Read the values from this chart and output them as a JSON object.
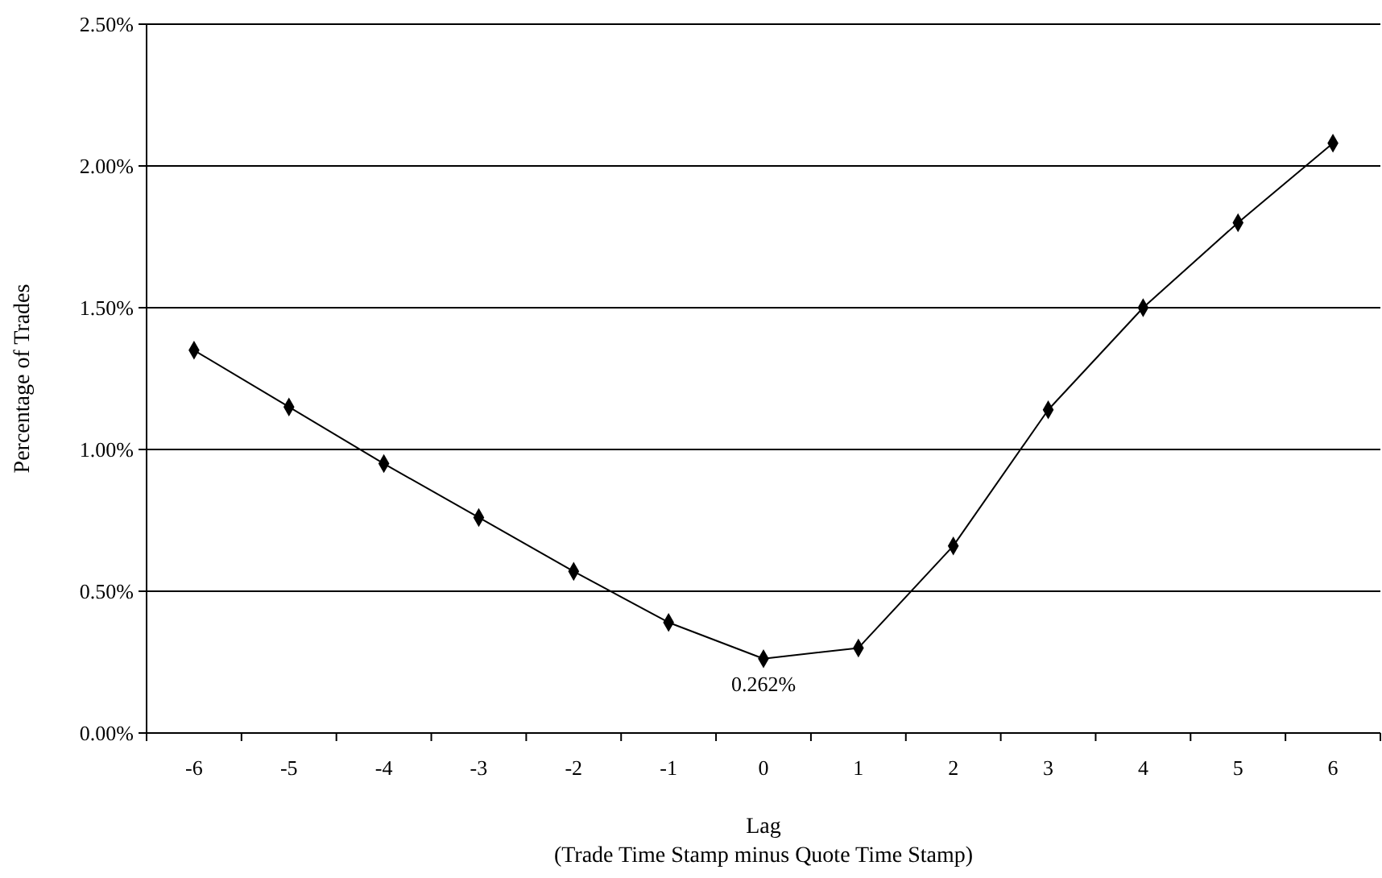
{
  "chart_data": {
    "type": "line",
    "xlabel": "Lag",
    "ylabel": "Percentage of Trades",
    "annotations": [
      "(Trade Time Stamp minus Quote Time Stamp)"
    ],
    "categories": [
      "-6",
      "-5",
      "-4",
      "-3",
      "-2",
      "-1",
      "0",
      "1",
      "2",
      "3",
      "4",
      "5",
      "6"
    ],
    "series": [
      {
        "color": "#000000",
        "values": [
          1.35,
          1.15,
          0.95,
          0.76,
          0.57,
          0.39,
          0.262,
          0.3,
          0.66,
          1.14,
          1.5,
          1.8,
          2.08
        ],
        "value_labels": [
          null,
          null,
          null,
          null,
          null,
          null,
          "0.262%",
          null,
          null,
          null,
          null,
          null,
          null
        ]
      }
    ],
    "ylim": [
      0,
      2.5
    ],
    "yticks": [
      {
        "value": 0,
        "label": "0.00%"
      },
      {
        "value": 0.5,
        "label": "0.50%"
      },
      {
        "value": 1,
        "label": "1.00%"
      },
      {
        "value": 1.5,
        "label": "1.50%"
      },
      {
        "value": 2,
        "label": "2.00%"
      },
      {
        "value": 2.5,
        "label": "2.50%"
      }
    ],
    "grid": "y",
    "marker": "diamond",
    "line_style": "solid"
  }
}
